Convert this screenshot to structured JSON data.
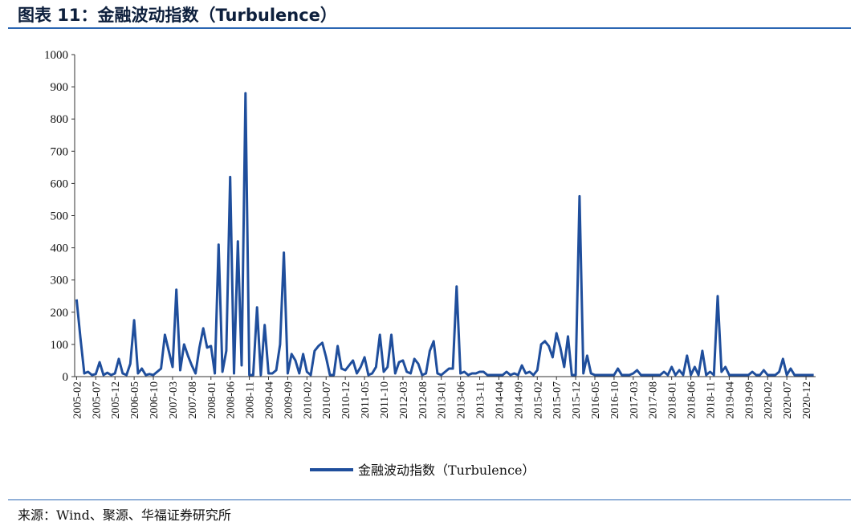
{
  "header": {
    "title": "图表 11：金融波动指数（Turbulence）"
  },
  "footer": {
    "source": "来源：Wind、聚源、华福证券研究所"
  },
  "chart_data": {
    "type": "line",
    "title": "",
    "xlabel": "",
    "ylabel": "",
    "ylim": [
      0,
      1000
    ],
    "y_ticks": [
      0,
      100,
      200,
      300,
      400,
      500,
      600,
      700,
      800,
      900,
      1000
    ],
    "x_start": "2005-02",
    "x_end": "2021-05",
    "x_tick_labels": [
      "2005-02",
      "2005-07",
      "2005-12",
      "2006-05",
      "2006-10",
      "2007-03",
      "2007-08",
      "2008-01",
      "2008-06",
      "2008-11",
      "2009-04",
      "2009-09",
      "2010-02",
      "2010-07",
      "2010-12",
      "2011-05",
      "2011-10",
      "2012-03",
      "2012-08",
      "2013-01",
      "2013-06",
      "2013-11",
      "2014-04",
      "2014-09",
      "2015-02",
      "2015-07",
      "2015-12",
      "2016-05",
      "2016-10",
      "2017-03",
      "2017-08",
      "2018-01",
      "2018-06",
      "2018-11",
      "2019-04",
      "2019-09",
      "2020-02",
      "2020-07",
      "2020-12"
    ],
    "grid": false,
    "legend_position": "bottom",
    "series": [
      {
        "name": "金融波动指数（Turbulence）",
        "color": "#1f4e9c",
        "values": [
          240,
          120,
          10,
          15,
          5,
          8,
          45,
          5,
          12,
          5,
          10,
          55,
          10,
          5,
          40,
          175,
          10,
          25,
          5,
          8,
          5,
          15,
          25,
          130,
          80,
          30,
          270,
          20,
          100,
          65,
          35,
          10,
          90,
          150,
          90,
          95,
          10,
          410,
          15,
          80,
          620,
          10,
          420,
          35,
          880,
          5,
          5,
          215,
          5,
          160,
          10,
          10,
          20,
          100,
          385,
          10,
          70,
          50,
          10,
          70,
          15,
          5,
          80,
          95,
          105,
          60,
          5,
          5,
          95,
          25,
          20,
          35,
          50,
          10,
          30,
          60,
          5,
          10,
          30,
          130,
          15,
          30,
          130,
          10,
          45,
          50,
          15,
          10,
          55,
          40,
          5,
          10,
          80,
          110,
          10,
          5,
          15,
          25,
          25,
          280,
          10,
          15,
          5,
          10,
          10,
          15,
          15,
          5,
          5,
          5,
          5,
          5,
          15,
          5,
          10,
          5,
          35,
          10,
          15,
          5,
          20,
          100,
          110,
          95,
          60,
          135,
          90,
          30,
          125,
          5,
          5,
          560,
          10,
          65,
          10,
          5,
          5,
          5,
          5,
          5,
          5,
          25,
          5,
          5,
          5,
          10,
          20,
          5,
          5,
          5,
          5,
          5,
          5,
          15,
          5,
          30,
          5,
          20,
          5,
          65,
          5,
          30,
          5,
          80,
          5,
          15,
          5,
          250,
          15,
          30,
          5,
          5,
          5,
          5,
          5,
          5,
          15,
          5,
          5,
          20,
          5,
          5,
          5,
          15,
          55,
          5,
          25,
          5,
          5,
          5,
          5,
          5,
          5
        ]
      }
    ]
  }
}
